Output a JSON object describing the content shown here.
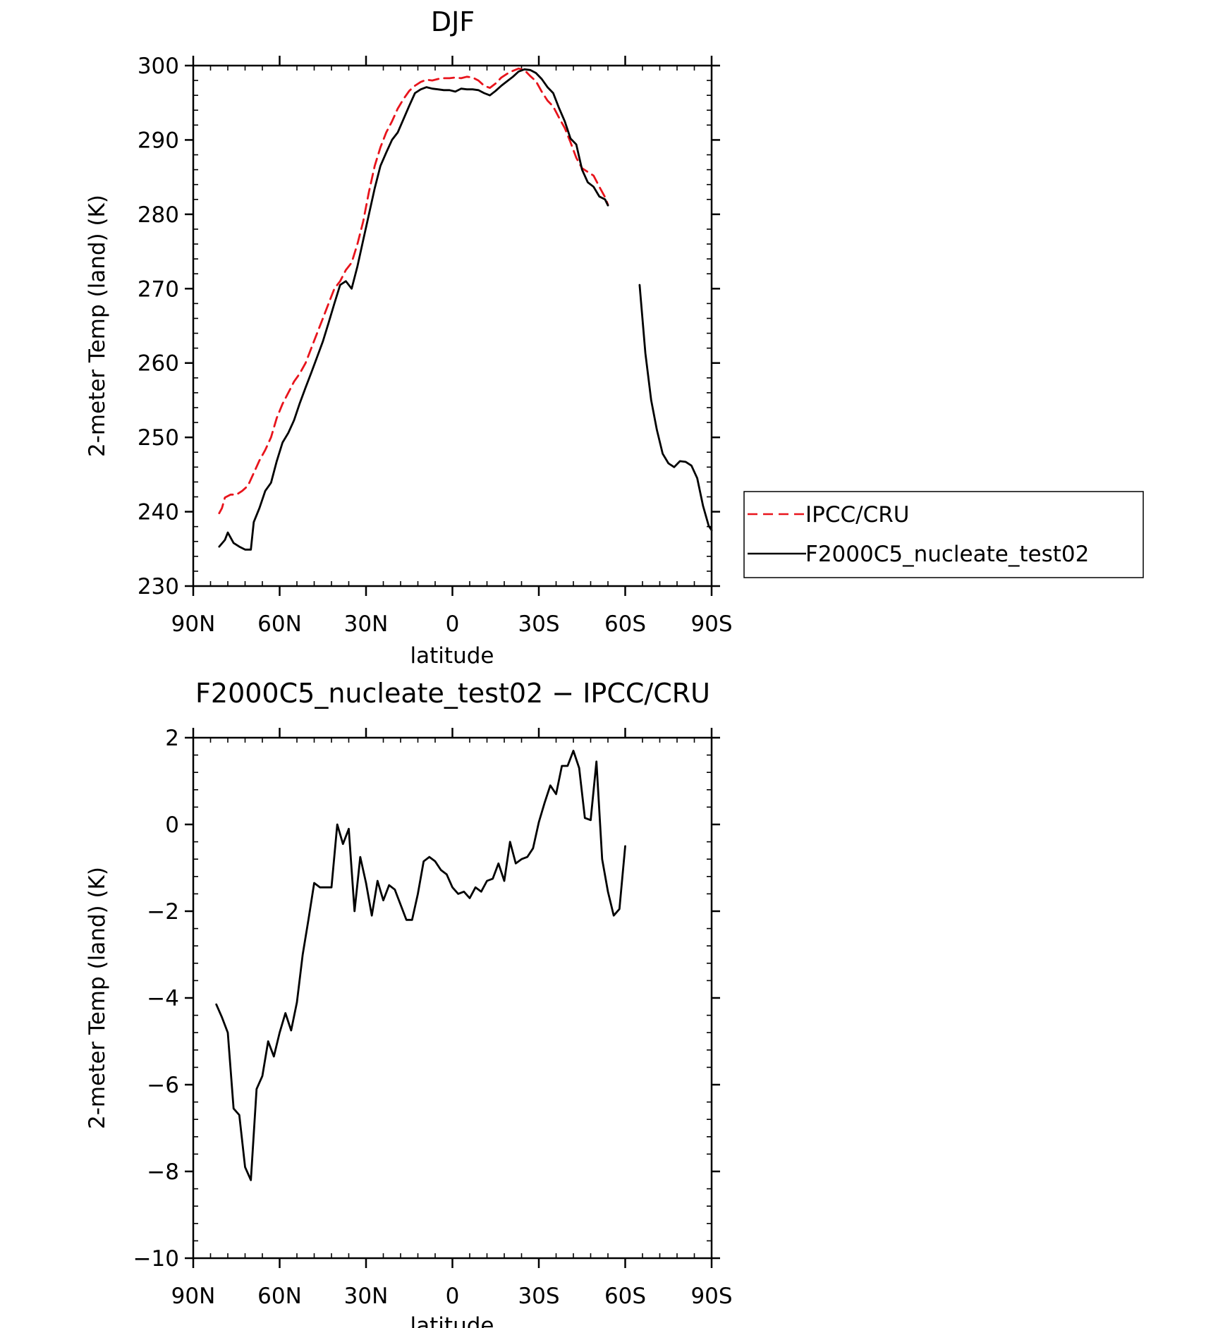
{
  "chart_data": [
    {
      "type": "line",
      "title": "DJF",
      "xlabel": "latitude",
      "ylabel": "2-meter Temp (land) (K)",
      "xlim": [
        90,
        -90
      ],
      "ylim": [
        230,
        300
      ],
      "x_major_ticks": [
        90,
        60,
        30,
        0,
        -30,
        -60,
        -90
      ],
      "x_tick_labels": [
        "90N",
        "60N",
        "30N",
        "0",
        "30S",
        "60S",
        "90S"
      ],
      "y_major_ticks": [
        230,
        240,
        250,
        260,
        270,
        280,
        290,
        300
      ],
      "y_tick_labels": [
        "230",
        "240",
        "250",
        "260",
        "270",
        "280",
        "290",
        "300"
      ],
      "legend": {
        "placement": "right",
        "entries": [
          "IPCC/CRU",
          "F2000C5_nucleate_test02"
        ]
      },
      "series": [
        {
          "name": "IPCC/CRU",
          "color": "#e8141c",
          "dash": "dashed",
          "segments": [
            [
              [
                81,
                239.8
              ],
              [
                80,
                240.5
              ],
              [
                79,
                241.9
              ],
              [
                77,
                242.3
              ],
              [
                75,
                242.3
              ],
              [
                73,
                242.8
              ],
              [
                71,
                243.5
              ],
              [
                69,
                245.2
              ],
              [
                67,
                246.9
              ],
              [
                65,
                248.3
              ],
              [
                63,
                250.0
              ],
              [
                61,
                252.6
              ],
              [
                59,
                254.5
              ],
              [
                57,
                256.0
              ],
              [
                55,
                257.5
              ],
              [
                53,
                258.6
              ],
              [
                51,
                260.0
              ],
              [
                49,
                262.0
              ],
              [
                47,
                264.0
              ],
              [
                45,
                266.0
              ],
              [
                43,
                268.0
              ],
              [
                41,
                270.0
              ],
              [
                39,
                271.0
              ],
              [
                37,
                272.5
              ],
              [
                35,
                273.5
              ],
              [
                33,
                276.0
              ],
              [
                31,
                279.0
              ],
              [
                29,
                283.0
              ],
              [
                27,
                286.5
              ],
              [
                25,
                289.0
              ],
              [
                23,
                291.0
              ],
              [
                21,
                292.5
              ],
              [
                19,
                294.2
              ],
              [
                17,
                295.5
              ],
              [
                15,
                296.6
              ],
              [
                13,
                297.3
              ],
              [
                11,
                297.8
              ],
              [
                9,
                298.1
              ],
              [
                7,
                298.0
              ],
              [
                5,
                298.2
              ],
              [
                3,
                298.3
              ],
              [
                1,
                298.3
              ],
              [
                -1,
                298.4
              ],
              [
                -3,
                298.3
              ],
              [
                -5,
                298.5
              ],
              [
                -7,
                298.4
              ],
              [
                -9,
                298.0
              ],
              [
                -11,
                297.3
              ],
              [
                -13,
                297.0
              ],
              [
                -15,
                297.6
              ],
              [
                -17,
                298.4
              ],
              [
                -19,
                298.9
              ],
              [
                -21,
                299.3
              ],
              [
                -23,
                299.6
              ],
              [
                -25,
                299.4
              ],
              [
                -27,
                298.6
              ],
              [
                -29,
                297.9
              ],
              [
                -31,
                296.5
              ],
              [
                -33,
                295.3
              ],
              [
                -35,
                294.5
              ],
              [
                -37,
                293.0
              ],
              [
                -39,
                291.6
              ],
              [
                -41,
                289.7
              ],
              [
                -43,
                287.6
              ],
              [
                -45,
                286.2
              ],
              [
                -47,
                285.7
              ],
              [
                -49,
                285.2
              ],
              [
                -51,
                283.7
              ],
              [
                -53,
                282.3
              ],
              [
                -54,
                281.3
              ]
            ]
          ]
        },
        {
          "name": "F2000C5_nucleate_test02",
          "color": "#000000",
          "dash": "solid",
          "segments": [
            [
              [
                81,
                235.3
              ],
              [
                79,
                236.2
              ],
              [
                78,
                237.2
              ],
              [
                76,
                235.8
              ],
              [
                74,
                235.3
              ],
              [
                72,
                234.9
              ],
              [
                70,
                234.9
              ],
              [
                69,
                238.6
              ],
              [
                67,
                240.5
              ],
              [
                65,
                242.8
              ],
              [
                63,
                243.9
              ],
              [
                61,
                246.8
              ],
              [
                59,
                249.3
              ],
              [
                57,
                250.6
              ],
              [
                55,
                252.3
              ],
              [
                53,
                254.6
              ],
              [
                51,
                256.7
              ],
              [
                49,
                258.7
              ],
              [
                47,
                260.8
              ],
              [
                45,
                262.9
              ],
              [
                43,
                265.4
              ],
              [
                41,
                268.0
              ],
              [
                39,
                270.5
              ],
              [
                37,
                271.0
              ],
              [
                35,
                270.0
              ],
              [
                33,
                273.0
              ],
              [
                31,
                276.5
              ],
              [
                29,
                280.0
              ],
              [
                27,
                283.5
              ],
              [
                25,
                286.5
              ],
              [
                23,
                288.3
              ],
              [
                21,
                290.0
              ],
              [
                19,
                291.0
              ],
              [
                17,
                292.8
              ],
              [
                15,
                294.6
              ],
              [
                13,
                296.3
              ],
              [
                11,
                296.8
              ],
              [
                9,
                297.1
              ],
              [
                7,
                296.9
              ],
              [
                5,
                296.8
              ],
              [
                3,
                296.7
              ],
              [
                1,
                296.7
              ],
              [
                -1,
                296.5
              ],
              [
                -3,
                296.9
              ],
              [
                -5,
                296.8
              ],
              [
                -7,
                296.8
              ],
              [
                -9,
                296.7
              ],
              [
                -11,
                296.3
              ],
              [
                -13,
                296.0
              ],
              [
                -15,
                296.6
              ],
              [
                -17,
                297.3
              ],
              [
                -19,
                297.9
              ],
              [
                -21,
                298.5
              ],
              [
                -23,
                299.2
              ],
              [
                -25,
                299.5
              ],
              [
                -27,
                299.4
              ],
              [
                -29,
                299.0
              ],
              [
                -31,
                298.2
              ],
              [
                -33,
                297.1
              ],
              [
                -35,
                296.3
              ],
              [
                -37,
                294.3
              ],
              [
                -39,
                292.5
              ],
              [
                -41,
                290.2
              ],
              [
                -43,
                289.4
              ],
              [
                -45,
                286.0
              ],
              [
                -47,
                284.3
              ],
              [
                -49,
                283.7
              ],
              [
                -51,
                282.4
              ],
              [
                -53,
                282.0
              ],
              [
                -54,
                281.2
              ]
            ],
            [
              [
                -65,
                270.5
              ],
              [
                -67,
                261.3
              ],
              [
                -69,
                255.0
              ],
              [
                -71,
                251.0
              ],
              [
                -73,
                247.8
              ],
              [
                -75,
                246.5
              ],
              [
                -77,
                246.0
              ],
              [
                -79,
                246.8
              ],
              [
                -81,
                246.7
              ],
              [
                -83,
                246.2
              ],
              [
                -85,
                244.5
              ],
              [
                -87,
                240.8
              ],
              [
                -89,
                238.1
              ],
              [
                -90,
                237.5
              ]
            ]
          ]
        }
      ]
    },
    {
      "type": "line",
      "title": "F2000C5_nucleate_test02 − IPCC/CRU",
      "xlabel": "latitude",
      "ylabel": "2-meter Temp (land) (K)",
      "xlim": [
        90,
        -90
      ],
      "ylim": [
        -10,
        2
      ],
      "x_major_ticks": [
        90,
        60,
        30,
        0,
        -30,
        -60,
        -90
      ],
      "x_tick_labels": [
        "90N",
        "60N",
        "30N",
        "0",
        "30S",
        "60S",
        "90S"
      ],
      "y_major_ticks": [
        -10,
        -8,
        -6,
        -4,
        -2,
        0,
        2
      ],
      "y_tick_labels": [
        "−10",
        "−8",
        "−6",
        "−4",
        "−2",
        "0",
        "2"
      ],
      "series": [
        {
          "color": "#000000",
          "dash": "solid",
          "segments": [
            [
              [
                82,
                -4.15
              ],
              [
                80,
                -4.45
              ],
              [
                78,
                -4.8
              ],
              [
                76,
                -6.55
              ],
              [
                74,
                -6.7
              ],
              [
                72,
                -7.9
              ],
              [
                70,
                -8.2
              ],
              [
                68,
                -6.1
              ],
              [
                66,
                -5.8
              ],
              [
                64,
                -5.0
              ],
              [
                62,
                -5.35
              ],
              [
                60,
                -4.8
              ],
              [
                58,
                -4.35
              ],
              [
                56,
                -4.75
              ],
              [
                54,
                -4.1
              ],
              [
                52,
                -3.0
              ],
              [
                50,
                -2.2
              ],
              [
                48,
                -1.35
              ],
              [
                46,
                -1.45
              ],
              [
                44,
                -1.45
              ],
              [
                42,
                -1.45
              ],
              [
                40,
                0.0
              ],
              [
                38,
                -0.45
              ],
              [
                36,
                -0.1
              ],
              [
                34,
                -2.0
              ],
              [
                32,
                -0.75
              ],
              [
                30,
                -1.35
              ],
              [
                28,
                -2.1
              ],
              [
                26,
                -1.3
              ],
              [
                24,
                -1.75
              ],
              [
                22,
                -1.4
              ],
              [
                20,
                -1.5
              ],
              [
                18,
                -1.85
              ],
              [
                16,
                -2.2
              ],
              [
                14,
                -2.2
              ],
              [
                12,
                -1.6
              ],
              [
                10,
                -0.85
              ],
              [
                8,
                -0.75
              ],
              [
                6,
                -0.85
              ],
              [
                4,
                -1.05
              ],
              [
                2,
                -1.15
              ],
              [
                0,
                -1.45
              ],
              [
                -2,
                -1.6
              ],
              [
                -4,
                -1.55
              ],
              [
                -6,
                -1.7
              ],
              [
                -8,
                -1.45
              ],
              [
                -10,
                -1.55
              ],
              [
                -12,
                -1.3
              ],
              [
                -14,
                -1.25
              ],
              [
                -16,
                -0.9
              ],
              [
                -18,
                -1.3
              ],
              [
                -20,
                -0.4
              ],
              [
                -22,
                -0.9
              ],
              [
                -24,
                -0.8
              ],
              [
                -26,
                -0.75
              ],
              [
                -28,
                -0.55
              ],
              [
                -30,
                0.05
              ],
              [
                -32,
                0.5
              ],
              [
                -34,
                0.9
              ],
              [
                -36,
                0.7
              ],
              [
                -38,
                1.35
              ],
              [
                -40,
                1.35
              ],
              [
                -42,
                1.7
              ],
              [
                -44,
                1.3
              ],
              [
                -46,
                0.15
              ],
              [
                -48,
                0.1
              ],
              [
                -50,
                1.45
              ],
              [
                -52,
                -0.8
              ],
              [
                -54,
                -1.55
              ],
              [
                -56,
                -2.1
              ],
              [
                -58,
                -1.95
              ],
              [
                -60,
                -0.5
              ]
            ]
          ]
        }
      ]
    }
  ]
}
